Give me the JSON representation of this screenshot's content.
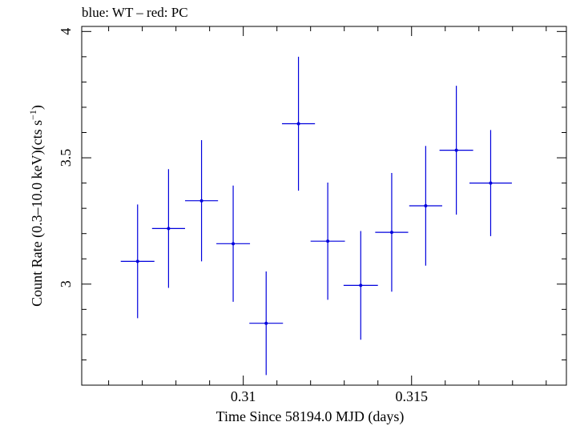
{
  "chart_data": {
    "type": "scatter",
    "title": "blue: WT – red: PC",
    "xlabel": "Time Since 58194.0 MJD (days)",
    "ylabel_main": "Count Rate (0.3–10.0 keV)(cts s",
    "ylabel_sup": "−1",
    "ylabel_close": ")",
    "xlim": [
      0.3052,
      0.3196
    ],
    "ylim": [
      2.6,
      4.02
    ],
    "x_ticks": [
      {
        "value": 0.31,
        "label": "0.31"
      },
      {
        "value": 0.315,
        "label": "0.315"
      }
    ],
    "y_ticks": [
      {
        "value": 3,
        "label": "3"
      },
      {
        "value": 3.5,
        "label": "3.5"
      },
      {
        "value": 4,
        "label": "4"
      }
    ],
    "grid": false,
    "series": [
      {
        "color": "#0000dd",
        "points": [
          {
            "x": 0.30686,
            "xerr": 0.0005,
            "y": 3.09,
            "yerr": 0.225
          },
          {
            "x": 0.30778,
            "xerr": 0.00049,
            "y": 3.22,
            "yerr": 0.235
          },
          {
            "x": 0.30876,
            "xerr": 0.00049,
            "y": 3.33,
            "yerr": 0.24
          },
          {
            "x": 0.3097,
            "xerr": 0.0005,
            "y": 3.16,
            "yerr": 0.23
          },
          {
            "x": 0.31068,
            "xerr": 0.0005,
            "y": 2.845,
            "yerr": 0.205
          },
          {
            "x": 0.31164,
            "xerr": 0.00049,
            "y": 3.635,
            "yerr": 0.265
          },
          {
            "x": 0.31251,
            "xerr": 0.00051,
            "y": 3.17,
            "yerr": 0.232
          },
          {
            "x": 0.31349,
            "xerr": 0.00051,
            "y": 2.995,
            "yerr": 0.215
          },
          {
            "x": 0.31441,
            "xerr": 0.00049,
            "y": 3.205,
            "yerr": 0.235
          },
          {
            "x": 0.31542,
            "xerr": 0.00049,
            "y": 3.31,
            "yerr": 0.237
          },
          {
            "x": 0.31633,
            "xerr": 0.0005,
            "y": 3.53,
            "yerr": 0.255
          },
          {
            "x": 0.31735,
            "xerr": 0.00063,
            "y": 3.4,
            "yerr": 0.21
          }
        ]
      }
    ]
  }
}
